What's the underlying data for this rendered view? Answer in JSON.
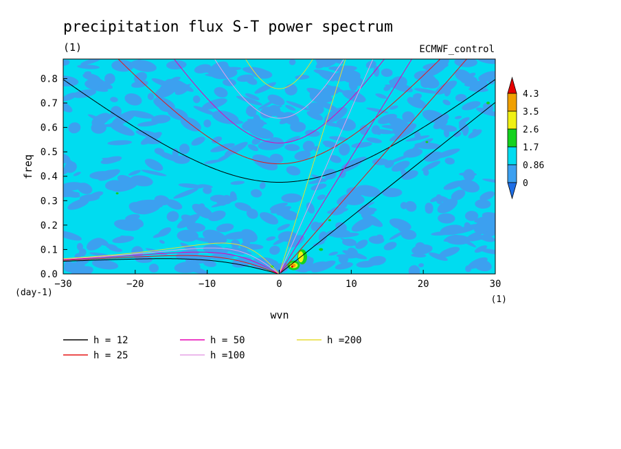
{
  "chart_data": {
    "type": "heatmap",
    "title": "precipitation flux S-T power spectrum",
    "subtitle_left": "(1)",
    "subtitle_right": "ECMWF_control",
    "xlabel": "wvn",
    "ylabel": "freq",
    "x_unit_label": "(1)",
    "y_unit_label": "(day-1)",
    "xlim": [
      -30,
      30
    ],
    "ylim": [
      0,
      0.88
    ],
    "x_ticks": [
      -30,
      -20,
      -10,
      0,
      10,
      20,
      30
    ],
    "x_tick_labels": [
      "−30",
      "−20",
      "−10",
      "0",
      "10",
      "20",
      "30"
    ],
    "y_ticks": [
      0,
      0.1,
      0.2,
      0.3,
      0.4,
      0.5,
      0.6,
      0.7,
      0.8
    ],
    "y_tick_labels": [
      "0.0",
      "0.1",
      "0.2",
      "0.3",
      "0.4",
      "0.5",
      "0.6",
      "0.7",
      "0.8"
    ],
    "colorbar": {
      "levels": [
        0,
        0.86,
        1.7,
        2.6,
        3.5,
        4.3
      ],
      "labels": [
        "0",
        "0.86",
        "1.7",
        "2.6",
        "3.5",
        "4.3"
      ],
      "colors": [
        "#1e6ee6",
        "#3ca0f0",
        "#00dcf0",
        "#14d21e",
        "#f0f014",
        "#f0a000",
        "#e60000"
      ]
    },
    "dispersion_curves": [
      {
        "label": "h = 12",
        "h": 12,
        "color": "#000000"
      },
      {
        "label": "h = 25",
        "h": 25,
        "color": "#e61414"
      },
      {
        "label": "h = 50",
        "h": 50,
        "color": "#e600b4"
      },
      {
        "label": "h =100",
        "h": 100,
        "color": "#e6a0e6"
      },
      {
        "label": "h =200",
        "h": 200,
        "color": "#e6dc32"
      }
    ],
    "background_level": "0.86-1.7",
    "patchy_level": "0-0.86",
    "peak_region": {
      "wvn": [
        1,
        4
      ],
      "freq": [
        0.02,
        0.09
      ],
      "max_level": "4.3"
    }
  }
}
